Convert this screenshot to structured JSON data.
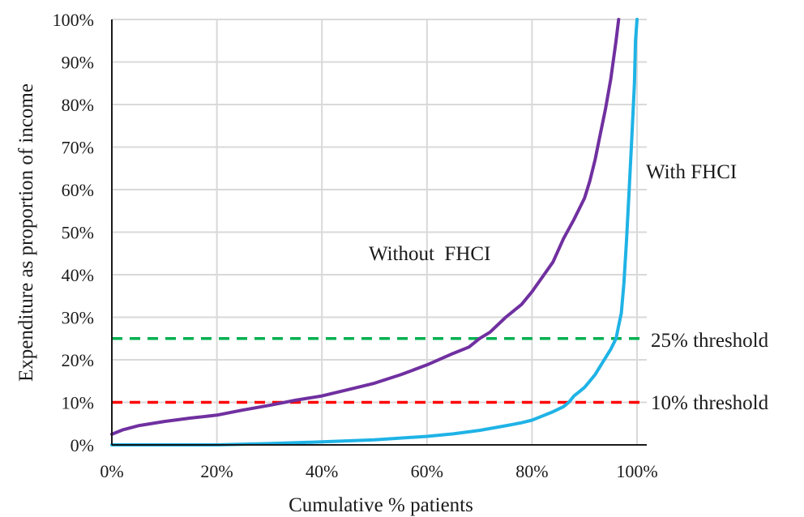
{
  "chart_data": {
    "type": "line",
    "xlabel": "Cumulative % patients",
    "ylabel": "Expenditure as proportion of income",
    "xlim": [
      0,
      100
    ],
    "ylim": [
      0,
      100
    ],
    "x_ticks": [
      "0%",
      "20%",
      "40%",
      "60%",
      "80%",
      "100%"
    ],
    "y_ticks": [
      "0%",
      "10%",
      "20%",
      "30%",
      "40%",
      "50%",
      "60%",
      "70%",
      "80%",
      "90%",
      "100%"
    ],
    "grid": "vertical and horizontal",
    "series": [
      {
        "name": "Without  FHCI",
        "color": "#7030a0",
        "x": [
          0,
          2,
          5,
          10,
          15,
          20,
          25,
          30,
          35,
          40,
          45,
          50,
          55,
          60,
          65,
          68,
          70,
          72,
          75,
          78,
          80,
          82,
          84,
          86,
          88,
          90,
          91,
          92,
          93,
          94,
          95,
          96,
          96.5
        ],
        "y": [
          2.5,
          3.5,
          4.5,
          5.5,
          6.3,
          7,
          8.2,
          9.3,
          10.5,
          11.5,
          13,
          14.5,
          16.5,
          18.8,
          21.5,
          23,
          25,
          26.5,
          30,
          33,
          36,
          39.5,
          43,
          48.5,
          53,
          58,
          62,
          67,
          73,
          79,
          86,
          95,
          100
        ]
      },
      {
        "name": "With FHCI",
        "color": "#1fb3e6",
        "x": [
          0,
          10,
          20,
          30,
          40,
          50,
          60,
          65,
          70,
          75,
          78,
          80,
          82,
          84,
          86,
          87,
          88,
          89,
          90,
          91,
          92,
          93,
          94,
          95,
          96,
          96.5,
          97,
          97.5,
          98,
          98.5,
          99,
          99.5,
          99.7,
          100
        ],
        "y": [
          0,
          0,
          0,
          0.3,
          0.7,
          1.2,
          2,
          2.6,
          3.4,
          4.5,
          5.2,
          5.8,
          6.8,
          7.8,
          9,
          10,
          11.5,
          12.5,
          13.5,
          15,
          16.5,
          18.5,
          20.5,
          22.5,
          25,
          28,
          31,
          38,
          48,
          60,
          72,
          85,
          95,
          100
        ]
      }
    ],
    "thresholds": [
      {
        "label": "25% threshold",
        "value": 25,
        "color": "#00b050"
      },
      {
        "label": "10% threshold",
        "value": 10,
        "color": "#ff0000"
      }
    ],
    "annotations": {
      "without": "Without  FHCI",
      "with": "With FHCI"
    }
  }
}
